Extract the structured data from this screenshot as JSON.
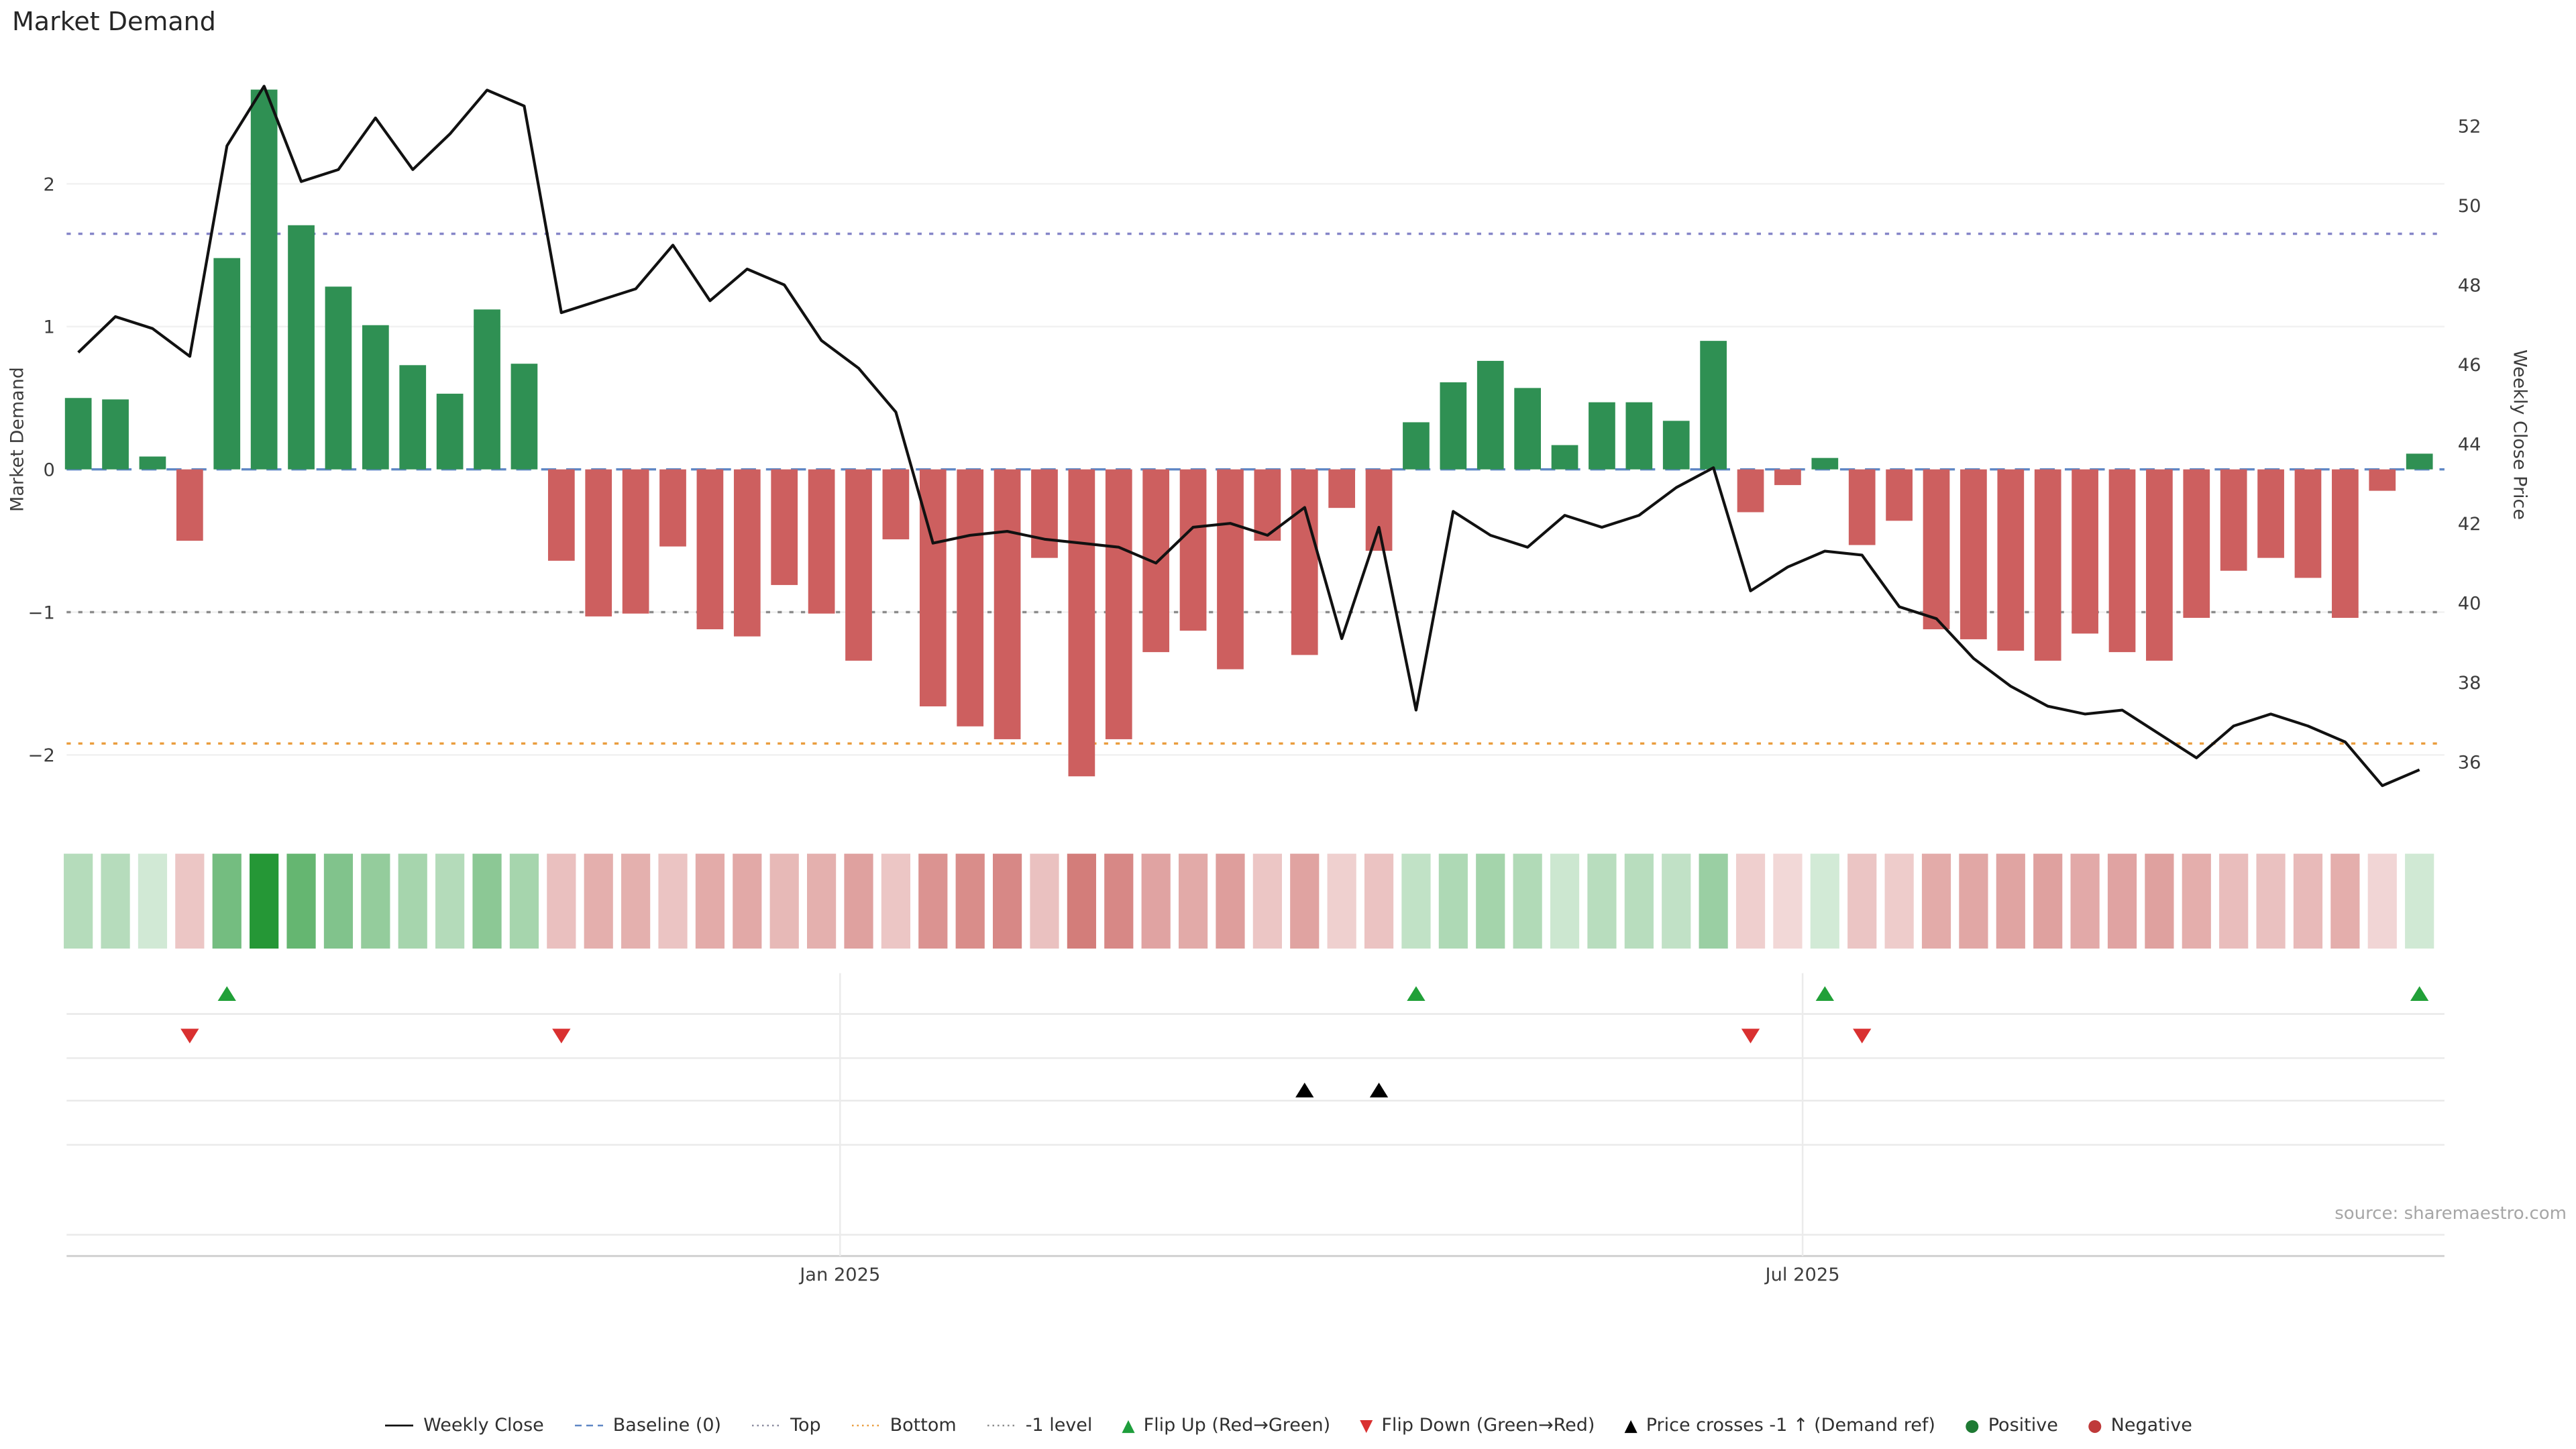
{
  "title": "Market Demand",
  "source": "source: sharemaestro.com",
  "axes": {
    "left_title": "Market Demand",
    "right_title": "Weekly Close Price",
    "left_ticks": [
      {
        "label": "2",
        "value": 2
      },
      {
        "label": "1",
        "value": 1
      },
      {
        "label": "0",
        "value": 0
      },
      {
        "label": "−1",
        "value": -1
      },
      {
        "label": "−2",
        "value": -2
      }
    ],
    "right_ticks": [
      {
        "label": "52",
        "value": 52
      },
      {
        "label": "50",
        "value": 50
      },
      {
        "label": "48",
        "value": 48
      },
      {
        "label": "46",
        "value": 46
      },
      {
        "label": "44",
        "value": 44
      },
      {
        "label": "42",
        "value": 42
      },
      {
        "label": "40",
        "value": 40
      },
      {
        "label": "38",
        "value": 38
      },
      {
        "label": "36",
        "value": 36
      }
    ],
    "x_ticks": [
      {
        "label": "Jan 2025",
        "index": 20.5
      },
      {
        "label": "Jul 2025",
        "index": 46.4
      }
    ]
  },
  "reference_lines": [
    {
      "name": "top",
      "label": "Top",
      "value": 1.65,
      "color": "#8585c8",
      "dash": "2.5 4.5"
    },
    {
      "name": "baseline",
      "label": "Baseline (0)",
      "value": 0,
      "color": "#5f87c5",
      "dash": "9 6"
    },
    {
      "name": "minus1",
      "label": "-1 level",
      "value": -1,
      "color": "#8c8c8c",
      "dash": "2.5 4.5"
    },
    {
      "name": "bottom",
      "label": "Bottom",
      "value": -1.92,
      "color": "#ea9d3e",
      "dash": "2.5 4.5"
    }
  ],
  "colors": {
    "positive": "#2f9053",
    "negative": "#cd5f5f",
    "price_line": "#111111",
    "flip_up": "#21a038",
    "flip_down": "#d93030",
    "price_cross": "#000000"
  },
  "chart_data": {
    "type": "bar+line",
    "series": [
      {
        "name": "Market Demand",
        "type": "bar",
        "axis": "left"
      },
      {
        "name": "Weekly Close",
        "type": "line",
        "axis": "right"
      }
    ],
    "demand": [
      0.5,
      0.49,
      0.09,
      -0.5,
      1.48,
      2.66,
      1.71,
      1.28,
      1.01,
      0.73,
      0.53,
      1.12,
      0.74,
      -0.64,
      -1.03,
      -1.01,
      -0.54,
      -1.12,
      -1.17,
      -0.81,
      -1.01,
      -1.34,
      -0.49,
      -1.66,
      -1.8,
      -1.89,
      -0.62,
      -2.15,
      -1.89,
      -1.28,
      -1.13,
      -1.4,
      -0.5,
      -1.3,
      -0.27,
      -0.57,
      0.33,
      0.61,
      0.76,
      0.57,
      0.17,
      0.47,
      0.47,
      0.34,
      0.9,
      -0.3,
      -0.11,
      0.08,
      -0.53,
      -0.36,
      -1.12,
      -1.19,
      -1.27,
      -1.34,
      -1.15,
      -1.28,
      -1.34,
      -1.04,
      -0.71,
      -0.62,
      -0.76,
      -1.04,
      -0.15,
      0.11
    ],
    "price": [
      46.3,
      47.2,
      46.9,
      46.2,
      51.5,
      53.0,
      50.6,
      50.9,
      52.2,
      50.9,
      51.8,
      52.9,
      52.5,
      47.3,
      47.6,
      47.9,
      49.0,
      47.6,
      48.4,
      48.0,
      46.6,
      45.9,
      44.8,
      41.5,
      41.7,
      41.8,
      41.6,
      41.5,
      41.4,
      41.0,
      41.9,
      42.0,
      41.7,
      42.4,
      39.1,
      41.9,
      37.3,
      42.3,
      41.7,
      41.4,
      42.2,
      41.9,
      42.2,
      42.9,
      43.4,
      40.3,
      40.9,
      41.3,
      41.2,
      39.9,
      39.6,
      38.6,
      37.9,
      37.4,
      37.2,
      37.3,
      36.7,
      36.1,
      36.9,
      37.2,
      36.9,
      36.5,
      35.4,
      35.8
    ],
    "flip_up_indices": [
      4,
      36,
      47,
      63
    ],
    "flip_down_indices": [
      3,
      13,
      45,
      48
    ],
    "price_cross_indices": [
      33,
      35
    ],
    "demand_ylim": [
      -2.35,
      2.85
    ],
    "price_ylim": [
      35.0,
      53.5
    ],
    "grid": true,
    "legend_position": "bottom"
  },
  "legend": [
    {
      "label": "Weekly Close",
      "symbol": "line",
      "color": "#111111"
    },
    {
      "label": "Baseline (0)",
      "symbol": "dashed-line",
      "color": "#5f87c5"
    },
    {
      "label": "Top",
      "symbol": "dotted-line",
      "color": "#8a8a9e"
    },
    {
      "label": "Bottom",
      "symbol": "dotted-line",
      "color": "#ea9d3e"
    },
    {
      "label": "-1 level",
      "symbol": "dotted-line",
      "color": "#8c8c8c"
    },
    {
      "label": "Flip Up (Red→Green)",
      "symbol": "triangle-up",
      "color": "#1e9e3c"
    },
    {
      "label": "Flip Down (Green→Red)",
      "symbol": "triangle-down",
      "color": "#d93030"
    },
    {
      "label": "Price crosses -1 ↑ (Demand ref)",
      "symbol": "triangle-up",
      "color": "#000000"
    },
    {
      "label": "Positive",
      "symbol": "circle",
      "color": "#1e7a34"
    },
    {
      "label": "Negative",
      "symbol": "circle",
      "color": "#bf3a3a"
    }
  ]
}
